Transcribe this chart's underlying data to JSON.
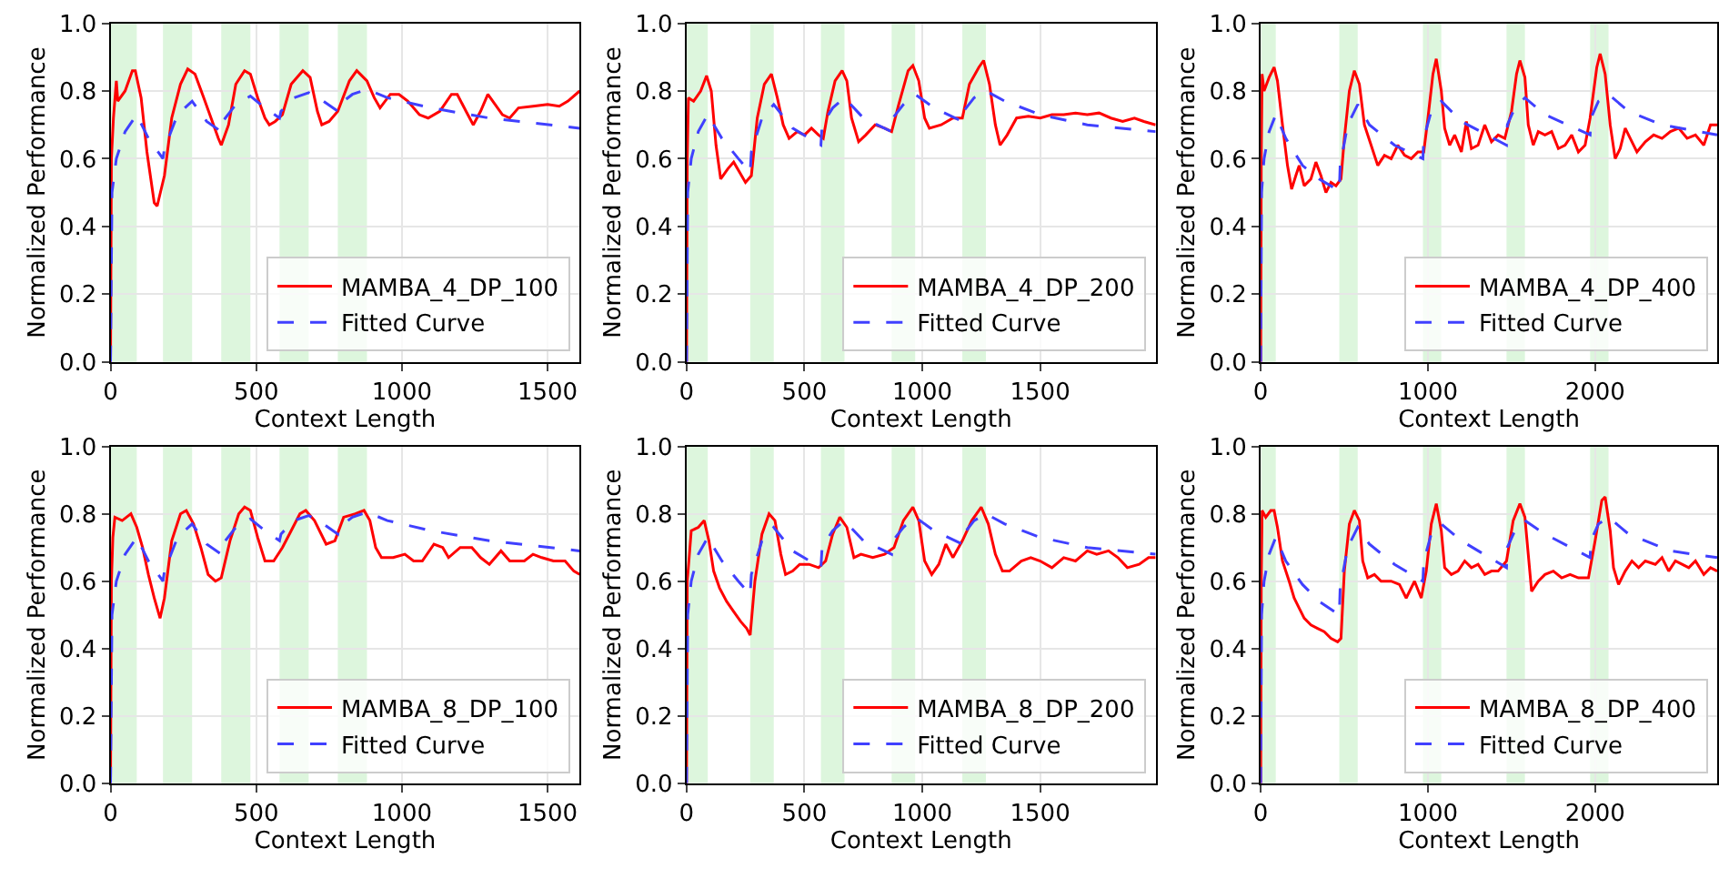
{
  "chart_data": [
    {
      "type": "line",
      "xlabel": "Context Length",
      "ylabel": "Normalized Performance",
      "xlim": [
        0,
        1610
      ],
      "xticks": [
        0,
        500,
        1000,
        1500
      ],
      "ylim": [
        0,
        1
      ],
      "yticks": [
        {
          "value": 0,
          "label": "0.0"
        },
        {
          "value": 0.2,
          "label": "0.2"
        },
        {
          "value": 0.4,
          "label": "0.4"
        },
        {
          "value": 0.6,
          "label": "0.6"
        },
        {
          "value": 0.8,
          "label": "0.8"
        },
        {
          "value": 1,
          "label": "1.0"
        }
      ],
      "grid": true,
      "legend": "bottom right",
      "bands": [
        {
          "axis": "x",
          "from": 0,
          "to": 90,
          "color": "#ddf6dd"
        },
        {
          "axis": "x",
          "from": 180,
          "to": 280,
          "color": "#ddf6dd"
        },
        {
          "axis": "x",
          "from": 380,
          "to": 480,
          "color": "#ddf6dd"
        },
        {
          "axis": "x",
          "from": 580,
          "to": 680,
          "color": "#ddf6dd"
        },
        {
          "axis": "x",
          "from": 780,
          "to": 880,
          "color": "#ddf6dd"
        }
      ],
      "series": [
        {
          "name": "MAMBA_4_DP_100",
          "color": "#ff0000",
          "line_style": "solid",
          "x": [
            0,
            3,
            10,
            20,
            25,
            50,
            75,
            85,
            105,
            125,
            150,
            160,
            185,
            210,
            240,
            265,
            290,
            320,
            345,
            370,
            380,
            405,
            430,
            460,
            480,
            505,
            530,
            545,
            565,
            590,
            620,
            660,
            685,
            710,
            725,
            750,
            780,
            820,
            845,
            880,
            905,
            925,
            960,
            990,
            1020,
            1060,
            1090,
            1130,
            1170,
            1190,
            1220,
            1245,
            1270,
            1295,
            1320,
            1345,
            1370,
            1400,
            1450,
            1500,
            1540,
            1570,
            1610
          ],
          "values": [
            0,
            0.6,
            0.72,
            0.83,
            0.77,
            0.8,
            0.86,
            0.86,
            0.78,
            0.62,
            0.47,
            0.46,
            0.55,
            0.72,
            0.82,
            0.865,
            0.85,
            0.78,
            0.72,
            0.66,
            0.64,
            0.7,
            0.82,
            0.86,
            0.85,
            0.78,
            0.72,
            0.7,
            0.71,
            0.73,
            0.82,
            0.86,
            0.84,
            0.74,
            0.7,
            0.71,
            0.74,
            0.83,
            0.86,
            0.83,
            0.78,
            0.75,
            0.79,
            0.79,
            0.77,
            0.73,
            0.72,
            0.74,
            0.79,
            0.79,
            0.74,
            0.7,
            0.74,
            0.79,
            0.76,
            0.73,
            0.72,
            0.75,
            0.755,
            0.76,
            0.755,
            0.77,
            0.8
          ]
        },
        {
          "name": "Fitted Curve",
          "color": "#4040ff",
          "line_style": "dashed",
          "x": [
            0,
            5,
            20,
            50,
            90,
            130,
            180,
            185,
            230,
            280,
            330,
            380,
            385,
            430,
            480,
            530,
            580,
            585,
            630,
            680,
            730,
            780,
            785,
            830,
            880,
            950,
            1100,
            1300,
            1610
          ],
          "values": [
            0,
            0.5,
            0.6,
            0.68,
            0.73,
            0.66,
            0.6,
            0.63,
            0.73,
            0.77,
            0.71,
            0.68,
            0.71,
            0.76,
            0.785,
            0.75,
            0.72,
            0.74,
            0.78,
            0.795,
            0.77,
            0.74,
            0.76,
            0.79,
            0.805,
            0.78,
            0.75,
            0.72,
            0.69
          ]
        }
      ]
    },
    {
      "type": "line",
      "xlabel": "Context Length",
      "ylabel": "Normalized Performance",
      "xlim": [
        0,
        1990
      ],
      "xticks": [
        0,
        500,
        1000,
        1500
      ],
      "ylim": [
        0,
        1
      ],
      "yticks": [
        {
          "value": 0,
          "label": "0.0"
        },
        {
          "value": 0.2,
          "label": "0.2"
        },
        {
          "value": 0.4,
          "label": "0.4"
        },
        {
          "value": 0.6,
          "label": "0.6"
        },
        {
          "value": 0.8,
          "label": "0.8"
        },
        {
          "value": 1,
          "label": "1.0"
        }
      ],
      "grid": true,
      "legend": "bottom right",
      "bands": [
        {
          "axis": "x",
          "from": 0,
          "to": 90,
          "color": "#ddf6dd"
        },
        {
          "axis": "x",
          "from": 270,
          "to": 370,
          "color": "#ddf6dd"
        },
        {
          "axis": "x",
          "from": 570,
          "to": 670,
          "color": "#ddf6dd"
        },
        {
          "axis": "x",
          "from": 870,
          "to": 970,
          "color": "#ddf6dd"
        },
        {
          "axis": "x",
          "from": 1170,
          "to": 1270,
          "color": "#ddf6dd"
        }
      ],
      "series": [
        {
          "name": "MAMBA_4_DP_200",
          "color": "#ff0000",
          "line_style": "solid",
          "x": [
            0,
            3,
            8,
            30,
            60,
            85,
            105,
            125,
            145,
            175,
            200,
            225,
            250,
            275,
            300,
            330,
            360,
            385,
            410,
            435,
            470,
            500,
            530,
            560,
            580,
            600,
            630,
            660,
            680,
            700,
            730,
            760,
            800,
            840,
            870,
            900,
            940,
            960,
            985,
            1010,
            1030,
            1080,
            1130,
            1170,
            1200,
            1240,
            1260,
            1285,
            1310,
            1330,
            1360,
            1400,
            1450,
            1500,
            1550,
            1600,
            1650,
            1700,
            1750,
            1800,
            1850,
            1900,
            1940,
            1990
          ],
          "values": [
            0,
            0.6,
            0.78,
            0.77,
            0.8,
            0.845,
            0.8,
            0.64,
            0.54,
            0.57,
            0.59,
            0.56,
            0.53,
            0.55,
            0.72,
            0.82,
            0.85,
            0.78,
            0.7,
            0.66,
            0.68,
            0.67,
            0.69,
            0.67,
            0.66,
            0.74,
            0.83,
            0.86,
            0.83,
            0.72,
            0.65,
            0.67,
            0.7,
            0.69,
            0.68,
            0.76,
            0.86,
            0.875,
            0.83,
            0.72,
            0.69,
            0.7,
            0.72,
            0.72,
            0.82,
            0.87,
            0.89,
            0.82,
            0.7,
            0.64,
            0.67,
            0.72,
            0.725,
            0.72,
            0.73,
            0.73,
            0.735,
            0.73,
            0.735,
            0.72,
            0.71,
            0.72,
            0.71,
            0.7
          ]
        },
        {
          "name": "Fitted Curve",
          "color": "#4040ff",
          "line_style": "dashed",
          "x": [
            0,
            5,
            20,
            50,
            90,
            150,
            220,
            270,
            275,
            320,
            370,
            450,
            570,
            575,
            620,
            670,
            750,
            870,
            875,
            920,
            970,
            1050,
            1170,
            1175,
            1220,
            1270,
            1350,
            1500,
            1700,
            1990
          ],
          "values": [
            0,
            0.5,
            0.6,
            0.68,
            0.73,
            0.66,
            0.6,
            0.56,
            0.62,
            0.72,
            0.76,
            0.69,
            0.64,
            0.7,
            0.75,
            0.78,
            0.72,
            0.68,
            0.72,
            0.76,
            0.79,
            0.75,
            0.71,
            0.74,
            0.78,
            0.8,
            0.77,
            0.73,
            0.7,
            0.68
          ]
        }
      ]
    },
    {
      "type": "line",
      "xlabel": "Context Length",
      "ylabel": "Normalized Performance",
      "xlim": [
        0,
        2730
      ],
      "xticks": [
        0,
        1000,
        2000
      ],
      "ylim": [
        0,
        1
      ],
      "yticks": [
        {
          "value": 0,
          "label": "0.0"
        },
        {
          "value": 0.2,
          "label": "0.2"
        },
        {
          "value": 0.4,
          "label": "0.4"
        },
        {
          "value": 0.6,
          "label": "0.6"
        },
        {
          "value": 0.8,
          "label": "0.8"
        },
        {
          "value": 1,
          "label": "1.0"
        }
      ],
      "grid": true,
      "legend": "bottom right",
      "bands": [
        {
          "axis": "x",
          "from": 0,
          "to": 90,
          "color": "#ddf6dd"
        },
        {
          "axis": "x",
          "from": 470,
          "to": 580,
          "color": "#ddf6dd"
        },
        {
          "axis": "x",
          "from": 970,
          "to": 1080,
          "color": "#ddf6dd"
        },
        {
          "axis": "x",
          "from": 1470,
          "to": 1580,
          "color": "#ddf6dd"
        },
        {
          "axis": "x",
          "from": 1970,
          "to": 2080,
          "color": "#ddf6dd"
        }
      ],
      "series": [
        {
          "name": "MAMBA_4_DP_400",
          "color": "#ff0000",
          "line_style": "solid",
          "x": [
            0,
            3,
            8,
            20,
            50,
            80,
            100,
            130,
            160,
            185,
            210,
            230,
            260,
            300,
            330,
            360,
            390,
            420,
            450,
            480,
            500,
            530,
            560,
            590,
            620,
            660,
            700,
            740,
            780,
            820,
            860,
            900,
            940,
            975,
            1000,
            1030,
            1050,
            1080,
            1100,
            1130,
            1160,
            1200,
            1230,
            1260,
            1300,
            1340,
            1380,
            1420,
            1460,
            1500,
            1530,
            1550,
            1580,
            1600,
            1630,
            1660,
            1700,
            1740,
            1780,
            1820,
            1860,
            1900,
            1940,
            1970,
            2010,
            2030,
            2060,
            2090,
            2120,
            2150,
            2180,
            2210,
            2250,
            2300,
            2350,
            2400,
            2450,
            2500,
            2550,
            2600,
            2650,
            2690,
            2730
          ],
          "values": [
            0,
            0.6,
            0.85,
            0.8,
            0.84,
            0.87,
            0.83,
            0.7,
            0.58,
            0.51,
            0.55,
            0.58,
            0.52,
            0.54,
            0.59,
            0.55,
            0.5,
            0.53,
            0.52,
            0.54,
            0.66,
            0.8,
            0.86,
            0.82,
            0.7,
            0.64,
            0.58,
            0.61,
            0.6,
            0.64,
            0.61,
            0.6,
            0.62,
            0.62,
            0.72,
            0.85,
            0.895,
            0.8,
            0.69,
            0.64,
            0.67,
            0.62,
            0.71,
            0.63,
            0.64,
            0.7,
            0.65,
            0.67,
            0.66,
            0.74,
            0.85,
            0.89,
            0.84,
            0.7,
            0.64,
            0.68,
            0.67,
            0.68,
            0.63,
            0.64,
            0.67,
            0.62,
            0.64,
            0.72,
            0.87,
            0.91,
            0.85,
            0.7,
            0.6,
            0.63,
            0.69,
            0.66,
            0.62,
            0.65,
            0.67,
            0.66,
            0.68,
            0.69,
            0.66,
            0.67,
            0.64,
            0.7,
            0.7
          ]
        },
        {
          "name": "Fitted Curve",
          "color": "#4040ff",
          "line_style": "dashed",
          "x": [
            0,
            5,
            20,
            50,
            90,
            150,
            250,
            350,
            470,
            475,
            520,
            580,
            650,
            800,
            970,
            975,
            1020,
            1080,
            1200,
            1470,
            1475,
            1520,
            1580,
            1700,
            1970,
            1975,
            2020,
            2080,
            2200,
            2400,
            2730
          ],
          "values": [
            0,
            0.5,
            0.6,
            0.68,
            0.73,
            0.66,
            0.58,
            0.54,
            0.505,
            0.58,
            0.7,
            0.76,
            0.7,
            0.64,
            0.6,
            0.66,
            0.74,
            0.77,
            0.71,
            0.64,
            0.7,
            0.75,
            0.78,
            0.73,
            0.67,
            0.72,
            0.77,
            0.79,
            0.74,
            0.7,
            0.67
          ]
        }
      ]
    },
    {
      "type": "line",
      "xlabel": "Context Length",
      "ylabel": "Normalized Performance",
      "xlim": [
        0,
        1610
      ],
      "xticks": [
        0,
        500,
        1000,
        1500
      ],
      "ylim": [
        0,
        1
      ],
      "yticks": [
        {
          "value": 0,
          "label": "0.0"
        },
        {
          "value": 0.2,
          "label": "0.2"
        },
        {
          "value": 0.4,
          "label": "0.4"
        },
        {
          "value": 0.6,
          "label": "0.6"
        },
        {
          "value": 0.8,
          "label": "0.8"
        },
        {
          "value": 1,
          "label": "1.0"
        }
      ],
      "grid": true,
      "legend": "bottom right",
      "bands": [
        {
          "axis": "x",
          "from": 0,
          "to": 90,
          "color": "#ddf6dd"
        },
        {
          "axis": "x",
          "from": 180,
          "to": 280,
          "color": "#ddf6dd"
        },
        {
          "axis": "x",
          "from": 380,
          "to": 480,
          "color": "#ddf6dd"
        },
        {
          "axis": "x",
          "from": 580,
          "to": 680,
          "color": "#ddf6dd"
        },
        {
          "axis": "x",
          "from": 780,
          "to": 880,
          "color": "#ddf6dd"
        }
      ],
      "series": [
        {
          "name": "MAMBA_8_DP_100",
          "color": "#ff0000",
          "line_style": "solid",
          "x": [
            0,
            3,
            8,
            15,
            40,
            70,
            90,
            110,
            130,
            150,
            170,
            185,
            210,
            240,
            260,
            285,
            310,
            335,
            360,
            380,
            410,
            440,
            460,
            480,
            505,
            530,
            560,
            590,
            620,
            650,
            670,
            700,
            740,
            770,
            800,
            840,
            870,
            890,
            910,
            930,
            970,
            1010,
            1040,
            1070,
            1110,
            1140,
            1160,
            1200,
            1240,
            1270,
            1300,
            1340,
            1370,
            1420,
            1450,
            1480,
            1520,
            1560,
            1590,
            1610
          ],
          "values": [
            0,
            0.6,
            0.73,
            0.79,
            0.78,
            0.8,
            0.76,
            0.7,
            0.62,
            0.55,
            0.49,
            0.55,
            0.72,
            0.8,
            0.81,
            0.77,
            0.7,
            0.62,
            0.6,
            0.61,
            0.72,
            0.8,
            0.82,
            0.81,
            0.73,
            0.66,
            0.66,
            0.7,
            0.75,
            0.8,
            0.81,
            0.78,
            0.71,
            0.72,
            0.79,
            0.8,
            0.81,
            0.78,
            0.7,
            0.67,
            0.67,
            0.68,
            0.66,
            0.66,
            0.71,
            0.7,
            0.67,
            0.7,
            0.7,
            0.67,
            0.65,
            0.69,
            0.66,
            0.66,
            0.68,
            0.67,
            0.66,
            0.66,
            0.63,
            0.62
          ]
        },
        {
          "name": "Fitted Curve",
          "color": "#4040ff",
          "line_style": "dashed",
          "x": [
            0,
            5,
            20,
            50,
            90,
            130,
            180,
            185,
            230,
            280,
            330,
            380,
            385,
            430,
            480,
            530,
            580,
            585,
            630,
            680,
            730,
            780,
            785,
            830,
            880,
            950,
            1100,
            1300,
            1610
          ],
          "values": [
            0,
            0.5,
            0.6,
            0.68,
            0.73,
            0.66,
            0.6,
            0.63,
            0.73,
            0.77,
            0.71,
            0.68,
            0.71,
            0.76,
            0.785,
            0.75,
            0.72,
            0.74,
            0.78,
            0.795,
            0.77,
            0.74,
            0.76,
            0.79,
            0.805,
            0.78,
            0.75,
            0.72,
            0.69
          ]
        }
      ]
    },
    {
      "type": "line",
      "xlabel": "Context Length",
      "ylabel": "Normalized Performance",
      "xlim": [
        0,
        1990
      ],
      "xticks": [
        0,
        500,
        1000,
        1500
      ],
      "ylim": [
        0,
        1
      ],
      "yticks": [
        {
          "value": 0,
          "label": "0.0"
        },
        {
          "value": 0.2,
          "label": "0.2"
        },
        {
          "value": 0.4,
          "label": "0.4"
        },
        {
          "value": 0.6,
          "label": "0.6"
        },
        {
          "value": 0.8,
          "label": "0.8"
        },
        {
          "value": 1,
          "label": "1.0"
        }
      ],
      "grid": true,
      "legend": "bottom right",
      "bands": [
        {
          "axis": "x",
          "from": 0,
          "to": 90,
          "color": "#ddf6dd"
        },
        {
          "axis": "x",
          "from": 270,
          "to": 370,
          "color": "#ddf6dd"
        },
        {
          "axis": "x",
          "from": 570,
          "to": 670,
          "color": "#ddf6dd"
        },
        {
          "axis": "x",
          "from": 870,
          "to": 970,
          "color": "#ddf6dd"
        },
        {
          "axis": "x",
          "from": 1170,
          "to": 1270,
          "color": "#ddf6dd"
        }
      ],
      "series": [
        {
          "name": "MAMBA_8_DP_200",
          "color": "#ff0000",
          "line_style": "solid",
          "x": [
            0,
            3,
            10,
            20,
            50,
            75,
            95,
            115,
            140,
            170,
            200,
            230,
            255,
            270,
            290,
            320,
            350,
            375,
            400,
            420,
            450,
            480,
            520,
            560,
            590,
            620,
            650,
            680,
            710,
            740,
            790,
            840,
            880,
            920,
            960,
            985,
            1010,
            1040,
            1070,
            1100,
            1130,
            1170,
            1210,
            1250,
            1280,
            1310,
            1340,
            1370,
            1420,
            1460,
            1500,
            1550,
            1600,
            1650,
            1700,
            1740,
            1790,
            1830,
            1870,
            1920,
            1960,
            1990
          ],
          "values": [
            0,
            0.6,
            0.66,
            0.75,
            0.76,
            0.78,
            0.72,
            0.63,
            0.58,
            0.54,
            0.51,
            0.48,
            0.46,
            0.44,
            0.6,
            0.74,
            0.8,
            0.78,
            0.68,
            0.62,
            0.63,
            0.65,
            0.65,
            0.64,
            0.66,
            0.74,
            0.79,
            0.76,
            0.67,
            0.68,
            0.67,
            0.68,
            0.7,
            0.78,
            0.82,
            0.78,
            0.66,
            0.62,
            0.65,
            0.71,
            0.67,
            0.72,
            0.78,
            0.82,
            0.77,
            0.68,
            0.63,
            0.63,
            0.66,
            0.67,
            0.66,
            0.64,
            0.67,
            0.66,
            0.69,
            0.68,
            0.69,
            0.67,
            0.64,
            0.65,
            0.67,
            0.67
          ]
        },
        {
          "name": "Fitted Curve",
          "color": "#4040ff",
          "line_style": "dashed",
          "x": [
            0,
            5,
            20,
            50,
            90,
            150,
            220,
            270,
            275,
            320,
            370,
            450,
            570,
            575,
            620,
            670,
            750,
            870,
            875,
            920,
            970,
            1050,
            1170,
            1175,
            1220,
            1270,
            1350,
            1500,
            1700,
            1990
          ],
          "values": [
            0,
            0.5,
            0.6,
            0.68,
            0.73,
            0.66,
            0.6,
            0.56,
            0.62,
            0.72,
            0.76,
            0.69,
            0.64,
            0.7,
            0.75,
            0.78,
            0.72,
            0.68,
            0.72,
            0.76,
            0.79,
            0.75,
            0.71,
            0.74,
            0.78,
            0.8,
            0.77,
            0.73,
            0.7,
            0.68
          ]
        }
      ]
    },
    {
      "type": "line",
      "xlabel": "Context Length",
      "ylabel": "Normalized Performance",
      "xlim": [
        0,
        2730
      ],
      "xticks": [
        0,
        1000,
        2000
      ],
      "ylim": [
        0,
        1
      ],
      "yticks": [
        {
          "value": 0,
          "label": "0.0"
        },
        {
          "value": 0.2,
          "label": "0.2"
        },
        {
          "value": 0.4,
          "label": "0.4"
        },
        {
          "value": 0.6,
          "label": "0.6"
        },
        {
          "value": 0.8,
          "label": "0.8"
        },
        {
          "value": 1,
          "label": "1.0"
        }
      ],
      "grid": true,
      "legend": "bottom right",
      "bands": [
        {
          "axis": "x",
          "from": 0,
          "to": 90,
          "color": "#ddf6dd"
        },
        {
          "axis": "x",
          "from": 470,
          "to": 580,
          "color": "#ddf6dd"
        },
        {
          "axis": "x",
          "from": 970,
          "to": 1080,
          "color": "#ddf6dd"
        },
        {
          "axis": "x",
          "from": 1470,
          "to": 1580,
          "color": "#ddf6dd"
        },
        {
          "axis": "x",
          "from": 1970,
          "to": 2080,
          "color": "#ddf6dd"
        }
      ],
      "series": [
        {
          "name": "MAMBA_8_DP_400",
          "color": "#ff0000",
          "line_style": "solid",
          "x": [
            0,
            3,
            8,
            30,
            60,
            80,
            100,
            130,
            170,
            200,
            230,
            260,
            300,
            340,
            380,
            420,
            460,
            480,
            500,
            530,
            560,
            590,
            610,
            640,
            680,
            720,
            780,
            830,
            870,
            920,
            960,
            990,
            1020,
            1050,
            1080,
            1100,
            1140,
            1180,
            1220,
            1260,
            1300,
            1340,
            1380,
            1420,
            1470,
            1510,
            1550,
            1580,
            1600,
            1620,
            1660,
            1700,
            1750,
            1800,
            1850,
            1900,
            1960,
            2000,
            2040,
            2060,
            2090,
            2110,
            2140,
            2180,
            2220,
            2260,
            2300,
            2360,
            2400,
            2440,
            2480,
            2520,
            2560,
            2600,
            2650,
            2690,
            2730
          ],
          "values": [
            0,
            0.6,
            0.81,
            0.79,
            0.81,
            0.81,
            0.76,
            0.66,
            0.6,
            0.55,
            0.52,
            0.49,
            0.47,
            0.46,
            0.45,
            0.43,
            0.42,
            0.43,
            0.63,
            0.77,
            0.81,
            0.78,
            0.66,
            0.61,
            0.62,
            0.6,
            0.6,
            0.59,
            0.55,
            0.6,
            0.55,
            0.63,
            0.77,
            0.83,
            0.75,
            0.64,
            0.62,
            0.63,
            0.66,
            0.64,
            0.65,
            0.62,
            0.63,
            0.63,
            0.66,
            0.78,
            0.83,
            0.79,
            0.68,
            0.57,
            0.6,
            0.62,
            0.63,
            0.61,
            0.62,
            0.61,
            0.61,
            0.72,
            0.84,
            0.85,
            0.75,
            0.64,
            0.59,
            0.63,
            0.66,
            0.64,
            0.66,
            0.65,
            0.67,
            0.63,
            0.66,
            0.65,
            0.64,
            0.66,
            0.62,
            0.64,
            0.63
          ]
        },
        {
          "name": "Fitted Curve",
          "color": "#4040ff",
          "line_style": "dashed",
          "x": [
            0,
            5,
            20,
            50,
            90,
            150,
            250,
            350,
            470,
            475,
            520,
            580,
            650,
            800,
            970,
            975,
            1020,
            1080,
            1200,
            1470,
            1475,
            1520,
            1580,
            1700,
            1970,
            1975,
            2020,
            2080,
            2200,
            2450,
            2730
          ],
          "values": [
            0,
            0.5,
            0.6,
            0.68,
            0.73,
            0.66,
            0.59,
            0.54,
            0.5,
            0.58,
            0.7,
            0.76,
            0.71,
            0.65,
            0.6,
            0.66,
            0.74,
            0.77,
            0.72,
            0.64,
            0.7,
            0.75,
            0.78,
            0.74,
            0.67,
            0.72,
            0.77,
            0.79,
            0.74,
            0.69,
            0.67
          ]
        }
      ]
    }
  ]
}
